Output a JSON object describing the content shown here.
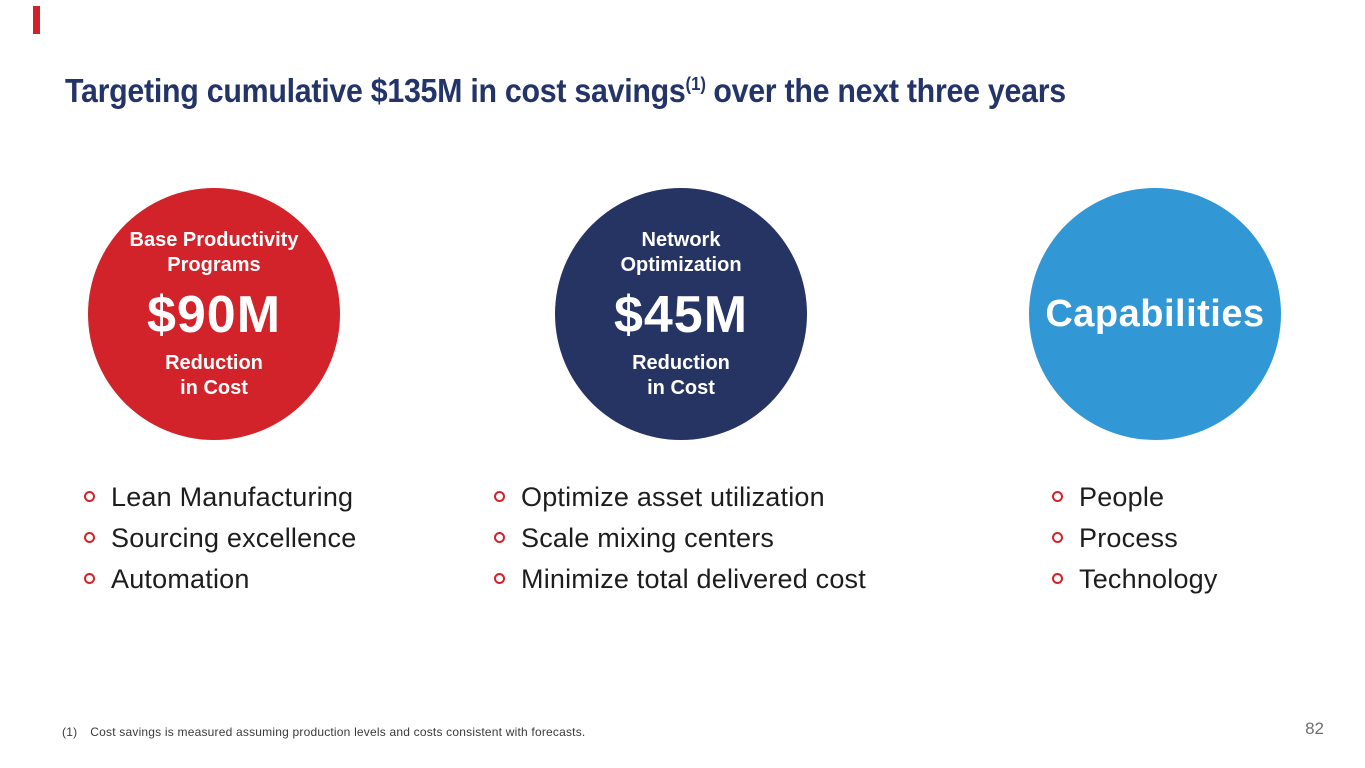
{
  "colors": {
    "accent_bar": "#d2232a",
    "title": "#233469",
    "circle_red": "#d2232a",
    "circle_navy": "#253462",
    "circle_blue": "#3297d5",
    "bullet_ring": "#d2232a"
  },
  "title": {
    "text": "Targeting cumulative $135M in cost savings",
    "superscript": "(1)",
    "suffix": "over the next three years"
  },
  "columns": [
    {
      "circle": {
        "heading_lines": [
          "Base Productivity",
          "Programs"
        ],
        "value": "$90M",
        "caption_lines": [
          "Reduction",
          "in Cost"
        ],
        "color": "#d2232a"
      },
      "bullets": [
        "Lean Manufacturing",
        "Sourcing excellence",
        "Automation"
      ]
    },
    {
      "circle": {
        "heading_lines": [
          "Network",
          "Optimization"
        ],
        "value": "$45M",
        "caption_lines": [
          "Reduction",
          "in Cost"
        ],
        "color": "#253462"
      },
      "bullets": [
        "Optimize asset utilization",
        "Scale mixing centers",
        "Minimize total delivered cost"
      ]
    },
    {
      "circle": {
        "value": "Capabilities",
        "color": "#3297d5"
      },
      "bullets": [
        "People",
        "Process",
        "Technology"
      ]
    }
  ],
  "footnote": {
    "marker": "(1)",
    "text": "Cost savings is measured assuming production levels and costs consistent with forecasts."
  },
  "page_number": "82"
}
